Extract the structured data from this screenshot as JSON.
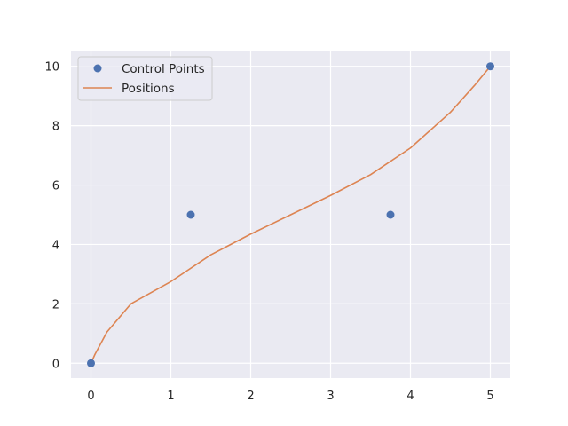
{
  "chart_data": {
    "type": "line",
    "xlim": [
      -0.25,
      5.25
    ],
    "ylim": [
      -0.5,
      10.5
    ],
    "x_ticks": [
      0,
      1,
      2,
      3,
      4,
      5
    ],
    "y_ticks": [
      0,
      2,
      4,
      6,
      8,
      10
    ],
    "grid": true,
    "legend_position": "top-left",
    "colors": {
      "background": "#eaeaf2",
      "grid": "#ffffff",
      "control_points": "#4c72b0",
      "positions": "#dd8452"
    },
    "series": [
      {
        "name": "Control Points",
        "kind": "scatter",
        "x": [
          0,
          1.25,
          3.75,
          5
        ],
        "y": [
          0,
          5,
          5,
          10
        ]
      },
      {
        "name": "Positions",
        "kind": "line",
        "x": [
          0,
          0.05,
          0.2,
          0.5,
          1.0,
          1.5,
          2.0,
          2.5,
          3.0,
          3.5,
          4.0,
          4.5,
          4.8,
          5.0
        ],
        "y": [
          0,
          0.3,
          1.05,
          2.0,
          2.75,
          3.65,
          4.35,
          5.0,
          5.65,
          6.35,
          7.25,
          8.45,
          9.35,
          10.0
        ]
      }
    ]
  }
}
